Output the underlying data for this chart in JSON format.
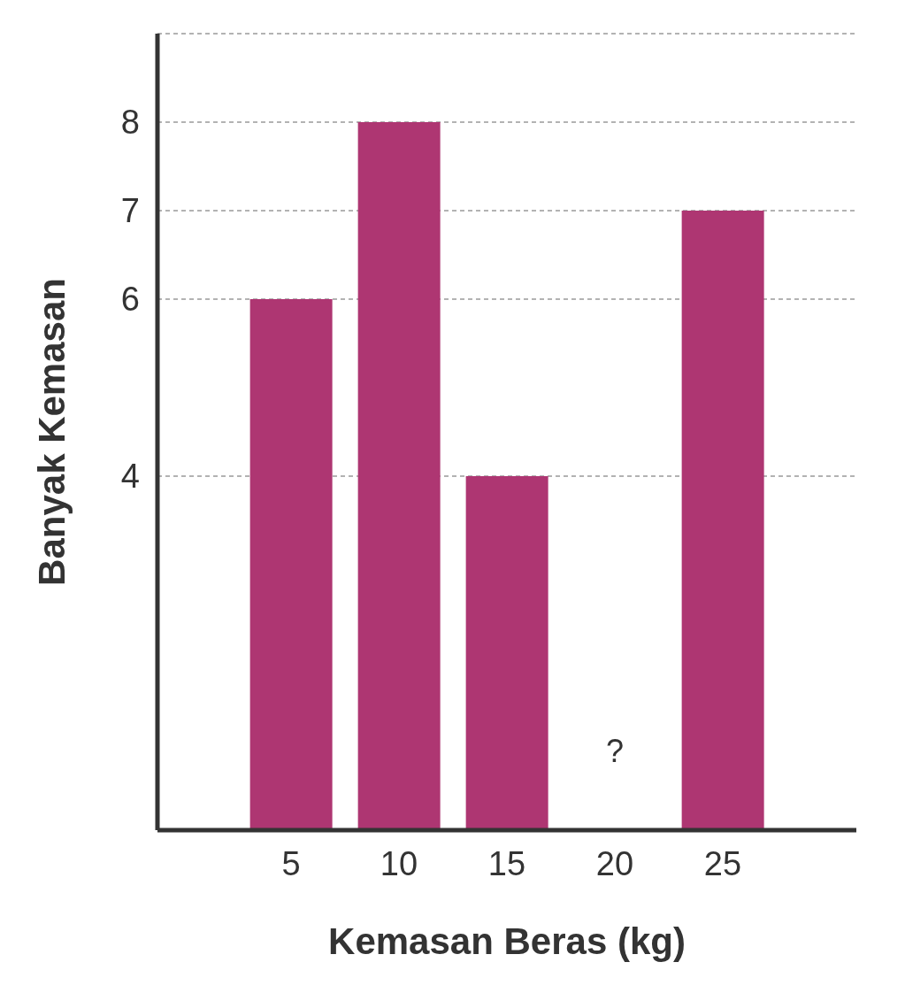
{
  "chart_data": {
    "type": "bar",
    "xlabel": "Kemasan Beras (kg)",
    "ylabel": "Banyak Kemasan",
    "categories": [
      "5",
      "10",
      "15",
      "20",
      "25"
    ],
    "values": [
      6,
      8,
      4,
      null,
      7
    ],
    "color": "#ae3672",
    "ylim": [
      0,
      9
    ],
    "yticks": [
      4,
      6,
      7,
      8
    ],
    "grid": "y",
    "annotations": [
      "?"
    ]
  }
}
